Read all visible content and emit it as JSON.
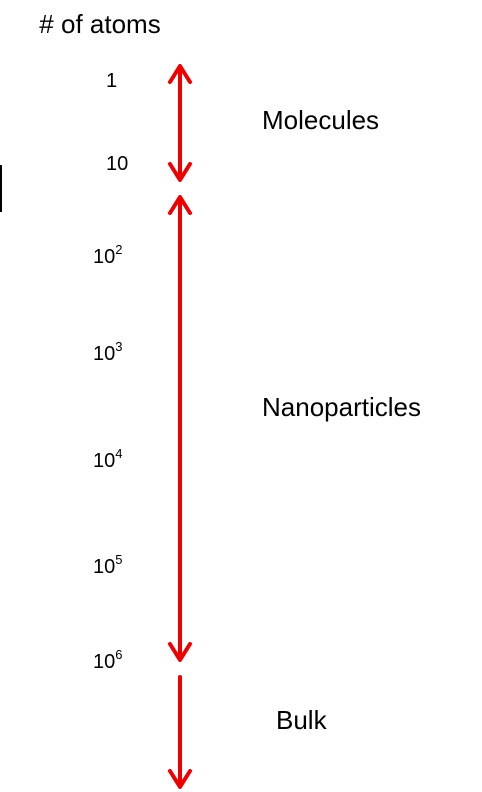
{
  "header": {
    "title": "# of atoms"
  },
  "scale": [
    {
      "base": "1"
    },
    {
      "base": "10"
    },
    {
      "base": "10",
      "exp": "2"
    },
    {
      "base": "10",
      "exp": "3"
    },
    {
      "base": "10",
      "exp": "4"
    },
    {
      "base": "10",
      "exp": "5"
    },
    {
      "base": "10",
      "exp": "6"
    }
  ],
  "regions": [
    {
      "label": "Molecules"
    },
    {
      "label": "Nanoparticles"
    },
    {
      "label": "Bulk"
    }
  ]
}
